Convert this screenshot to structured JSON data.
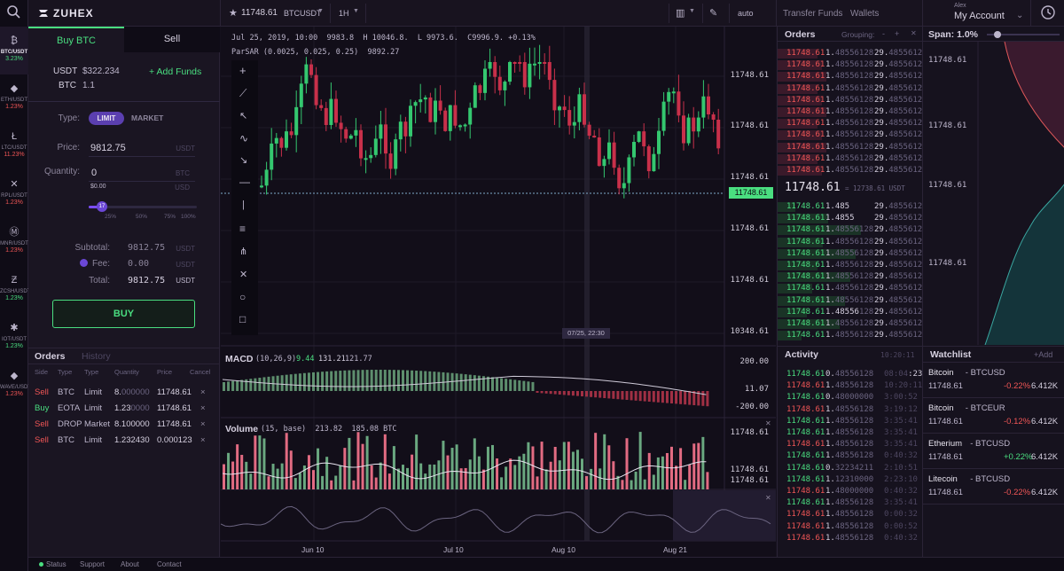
{
  "brand": {
    "name": "ZUHEX"
  },
  "rail": [
    {
      "symbol": "BTC/USDT",
      "change": "3.23%",
      "dir": "up",
      "icon": "bitcoin-icon"
    },
    {
      "symbol": "ETH/USDT",
      "change": "1.23%",
      "dir": "down",
      "icon": "ethereum-icon"
    },
    {
      "symbol": "LTC/USDT",
      "change": "11.23%",
      "dir": "down",
      "icon": "litecoin-icon"
    },
    {
      "symbol": "RPL/USDT",
      "change": "1.23%",
      "dir": "down",
      "icon": "ripple-icon"
    },
    {
      "symbol": "MNR/USDT",
      "change": "1.23%",
      "dir": "down",
      "icon": "monero-icon"
    },
    {
      "symbol": "ZCSH/USDT",
      "change": "1.23%",
      "dir": "up",
      "icon": "zcash-icon"
    },
    {
      "symbol": "IOT/USDT",
      "change": "1.23%",
      "dir": "up",
      "icon": "iota-icon"
    },
    {
      "symbol": "WAVE/USDT",
      "change": "1.23%",
      "dir": "down",
      "icon": "waves-icon"
    }
  ],
  "topbar": {
    "price": "11748.61",
    "pair": "BTCUSDT",
    "interval": "1H",
    "scale": "auto",
    "transfer": "Transfer Funds",
    "wallets": "Wallets",
    "user_small": "Alex",
    "account": "My Account"
  },
  "trade": {
    "tab_buy": "Buy BTC",
    "tab_sell": "Sell",
    "usdt_label": "USDT",
    "usdt_value": "$322.234",
    "btc_label": "BTC",
    "btc_value": "1.1",
    "add_funds": "+ Add Funds",
    "type_label": "Type:",
    "type_limit": "LIMIT",
    "type_market": "MARKET",
    "price_label": "Price:",
    "price_value": "9812.75",
    "price_unit": "USDT",
    "qty_label": "Quantity:",
    "qty_value": "0",
    "qty_unit": "BTC",
    "qty_sub": "$0.00",
    "qty_sub_unit": "USD",
    "slider_value": "17",
    "slider_ticks": [
      "25%",
      "50%",
      "75%",
      "100%"
    ],
    "subtotal_label": "Subtotal:",
    "subtotal_value": "9812.75",
    "subtotal_unit": "USDT",
    "fee_label": "Fee:",
    "fee_value": "0.00",
    "fee_unit": "USDT",
    "total_label": "Total:",
    "total_value": "9812.75",
    "total_unit": "USDT",
    "buy_button": "BUY"
  },
  "orders_left": {
    "tab_orders": "Orders",
    "tab_history": "History",
    "headers": [
      "Side",
      "Type",
      "Type",
      "Quantity",
      "Price",
      "Cancel"
    ],
    "rows": [
      {
        "side": "Sell",
        "asset": "BTC",
        "type": "Limit",
        "qty_main": "8.",
        "qty_dim": "000000",
        "price": "11748.61"
      },
      {
        "side": "Buy",
        "asset": "EOTA",
        "type": "Limit",
        "qty_main": "1.23",
        "qty_dim": "0000",
        "price": "11748.61"
      },
      {
        "side": "Sell",
        "asset": "DROP",
        "type": "Market",
        "qty_main": "8.100000",
        "qty_dim": "",
        "price": "11748.61"
      },
      {
        "side": "Sell",
        "asset": "BTC",
        "type": "Limit",
        "qty_main": "1.232430",
        "qty_dim": "",
        "price": "0.000123"
      }
    ]
  },
  "chart": {
    "ohlc_line": "Jul 25, 2019, 10:00  9983.8  H 10046.8.  L 9973.6.  C9996.9. +0.13%",
    "sar_line": "ParSAR (0.0025, 0.025, 0.25)  9892.27",
    "price_labels": [
      "11748.61",
      "11748.61",
      "11748.61",
      "11748.61",
      "11748.61",
      "10348.61"
    ],
    "current_price": "11748.61",
    "crosshair_time": "07/25, 22:30",
    "macd_title": "MACD",
    "macd_params": "(10,26,9)",
    "macd_v1": "9.44",
    "macd_v2": "131.21",
    "macd_v3": "121.77",
    "macd_scale": [
      "200.00",
      "11.07",
      "-200.00"
    ],
    "volume_title": "Volume",
    "volume_params": "(15, base)  213.82  185.08 BTC",
    "volume_scale": [
      "11748.61",
      "11748.61",
      "11748.61"
    ],
    "x_labels": [
      "Jun 10",
      "Jul 10",
      "Aug 10",
      "Aug 21"
    ]
  },
  "book": {
    "title": "Orders",
    "grouping": "Grouping:",
    "spread_price": "11748.61",
    "spread_note": "= 12738.61 USDT",
    "asks": [
      {
        "p": "11748.61",
        "q1": "1.",
        "q2": "48556128",
        "t1": "29.",
        "t2": "48556128"
      },
      {
        "p": "11748.61",
        "q1": "1.",
        "q2": "48556128",
        "t1": "29.",
        "t2": "48556128"
      },
      {
        "p": "11748.61",
        "q1": "1.",
        "q2": "48556128",
        "t1": "29.",
        "t2": "48556128"
      },
      {
        "p": "11748.61",
        "q1": "1.",
        "q2": "48556128",
        "t1": "29.",
        "t2": "48556128"
      },
      {
        "p": "11748.61",
        "q1": "1.",
        "q2": "48556128",
        "t1": "29.",
        "t2": "48556128"
      },
      {
        "p": "11748.61",
        "q1": "1.",
        "q2": "48556128",
        "t1": "29.",
        "t2": "48556128"
      },
      {
        "p": "11748.61",
        "q1": "1.",
        "q2": "48556128",
        "t1": "29.",
        "t2": "48556128"
      },
      {
        "p": "11748.61",
        "q1": "1.",
        "q2": "48556128",
        "t1": "29.",
        "t2": "48556128"
      },
      {
        "p": "11748.61",
        "q1": "1.",
        "q2": "48556128",
        "t1": "29.",
        "t2": "48556128"
      },
      {
        "p": "11748.61",
        "q1": "1.",
        "q2": "48556128",
        "t1": "29.",
        "t2": "48556128"
      },
      {
        "p": "11748.61",
        "q1": "1.",
        "q2": "48556128",
        "t1": "29.",
        "t2": "48556128"
      },
      {
        "p": "11748.61",
        "q1": "1.",
        "q2": "48556128",
        "t1": "29.",
        "t2": "48556128"
      }
    ],
    "bids": [
      {
        "p": "11748.61",
        "q1": "1.485",
        "q2": "",
        "t1": "29.",
        "t2": "48556128"
      },
      {
        "p": "11748.61",
        "q1": "1.4855",
        "q2": "",
        "t1": "29.",
        "t2": "48556128"
      },
      {
        "p": "11748.61",
        "q1": "1.",
        "q2": "48556128",
        "t1": "29.",
        "t2": "48556128"
      },
      {
        "p": "11748.61",
        "q1": "1.",
        "q2": "48556128",
        "t1": "29.",
        "t2": "48556128"
      },
      {
        "p": "11748.61",
        "q1": "1.",
        "q2": "48556128",
        "t1": "29.",
        "t2": "48556128"
      },
      {
        "p": "11748.61",
        "q1": "1.",
        "q2": "48556128",
        "t1": "29.",
        "t2": "48556128"
      },
      {
        "p": "11748.61",
        "q1": "1.",
        "q2": "48556128",
        "t1": "29.",
        "t2": "48556128"
      },
      {
        "p": "11748.61",
        "q1": "1.",
        "q2": "48556128",
        "t1": "29.",
        "t2": "48556128"
      },
      {
        "p": "11748.61",
        "q1": "1.",
        "q2": "48556128",
        "t1": "29.",
        "t2": "48556128"
      },
      {
        "p": "11748.61",
        "q1": "1.48556",
        "q2": "128",
        "t1": "29.",
        "t2": "48556128"
      },
      {
        "p": "11748.61",
        "q1": "1.",
        "q2": "48556128",
        "t1": "29.",
        "t2": "48556128"
      },
      {
        "p": "11748.61",
        "q1": "1.",
        "q2": "48556128",
        "t1": "29.",
        "t2": "48556128"
      }
    ]
  },
  "activity": {
    "title": "Activity",
    "time": "10:20:11",
    "rows": [
      {
        "p": "11748.61",
        "dir": "up",
        "q1": "0.",
        "q2": "48556128",
        "t1": "08:04",
        "t2": ":23"
      },
      {
        "p": "11748.61",
        "dir": "down",
        "q1": "1.",
        "q2": "48556128",
        "t1": "",
        "t2": "10:20:11"
      },
      {
        "p": "11748.61",
        "dir": "up",
        "q1": "0.",
        "q2": "48000000",
        "t1": "",
        "t2": "3:00:52"
      },
      {
        "p": "11748.61",
        "dir": "down",
        "q1": "1.",
        "q2": "48556128",
        "t1": "",
        "t2": "3:19:12"
      },
      {
        "p": "11748.61",
        "dir": "up",
        "q1": "1.",
        "q2": "48556128",
        "t1": "",
        "t2": "3:35:41"
      },
      {
        "p": "11748.61",
        "dir": "up",
        "q1": "1.",
        "q2": "48556128",
        "t1": "",
        "t2": "3:35:41"
      },
      {
        "p": "11748.61",
        "dir": "down",
        "q1": "1.",
        "q2": "48556128",
        "t1": "",
        "t2": "3:35:41"
      },
      {
        "p": "11748.61",
        "dir": "up",
        "q1": "1.",
        "q2": "48556128",
        "t1": "",
        "t2": "0:40:32"
      },
      {
        "p": "11748.61",
        "dir": "up",
        "q1": "0.",
        "q2": "32234211",
        "t1": "",
        "t2": "2:10:51"
      },
      {
        "p": "11748.61",
        "dir": "up",
        "q1": "1.",
        "q2": "12310000",
        "t1": "",
        "t2": "2:23:10"
      },
      {
        "p": "11748.61",
        "dir": "down",
        "q1": "1.",
        "q2": "48000000",
        "t1": "",
        "t2": "0:40:32"
      },
      {
        "p": "11748.61",
        "dir": "up",
        "q1": "1.",
        "q2": "48556128",
        "t1": "",
        "t2": "3:35:41"
      },
      {
        "p": "11748.61",
        "dir": "down",
        "q1": "1.",
        "q2": "48556128",
        "t1": "",
        "t2": "0:00:32"
      },
      {
        "p": "11748.61",
        "dir": "down",
        "q1": "1.",
        "q2": "48556128",
        "t1": "",
        "t2": "0:00:52"
      },
      {
        "p": "11748.61",
        "dir": "down",
        "q1": "1.",
        "q2": "48556128",
        "t1": "",
        "t2": "0:40:32"
      }
    ]
  },
  "depth": {
    "title": "Span: 1.0%",
    "labels": [
      "11748.61",
      "11748.61",
      "11748.61",
      "11748.61"
    ]
  },
  "watch": {
    "title": "Watchlist",
    "add": "+Add",
    "items": [
      {
        "name": "Bitcoin",
        "pair": "- BTCUSD",
        "price": "11748.61",
        "change": "-0.22%",
        "dir": "down",
        "vol": "6.412K"
      },
      {
        "name": "Bitcoin",
        "pair": "- BTCEUR",
        "price": "11748.61",
        "change": "-0.12%",
        "dir": "down",
        "vol": "6.412K"
      },
      {
        "name": "Etherium",
        "pair": "- BTCUSD",
        "price": "11748.61",
        "change": "+0.22%",
        "dir": "up",
        "vol": "6.412K"
      },
      {
        "name": "Litecoin",
        "pair": "- BTCUSD",
        "price": "11748.61",
        "change": "-0.22%",
        "dir": "down",
        "vol": "6.412K"
      }
    ]
  },
  "footer": {
    "status": "Status",
    "support": "Support",
    "about": "About",
    "contact": "Contact"
  },
  "colors": {
    "up": "#4ade80",
    "down": "#f05656",
    "accent": "#7c4dff",
    "bg": "#14101c"
  }
}
